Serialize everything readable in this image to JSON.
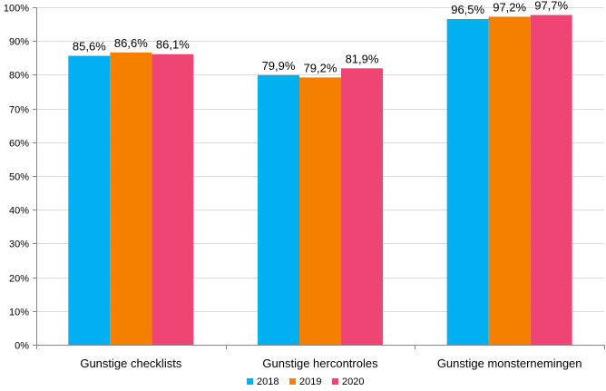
{
  "chart_data": {
    "type": "bar",
    "categories": [
      "Gunstige checklists",
      "Gunstige hercontroles",
      "Gunstige monsternemingen"
    ],
    "series": [
      {
        "name": "2018",
        "color": "#00b0f0",
        "values": [
          85.6,
          79.9,
          96.5
        ],
        "labels": [
          "85,6%",
          "79,9%",
          "96,5%"
        ]
      },
      {
        "name": "2019",
        "color": "#f58000",
        "values": [
          86.6,
          79.2,
          97.2
        ],
        "labels": [
          "86,6%",
          "79,2%",
          "97,2%"
        ]
      },
      {
        "name": "2020",
        "color": "#ef4575",
        "values": [
          86.1,
          81.9,
          97.7
        ],
        "labels": [
          "86,1%",
          "81,9%",
          "97,7%"
        ]
      }
    ],
    "ylim": [
      0,
      100
    ],
    "yticks": [
      "0%",
      "10%",
      "20%",
      "30%",
      "40%",
      "50%",
      "60%",
      "70%",
      "80%",
      "90%",
      "100%"
    ],
    "grid": true,
    "legend_position": "bottom-center",
    "title": "",
    "xlabel": "",
    "ylabel": ""
  }
}
